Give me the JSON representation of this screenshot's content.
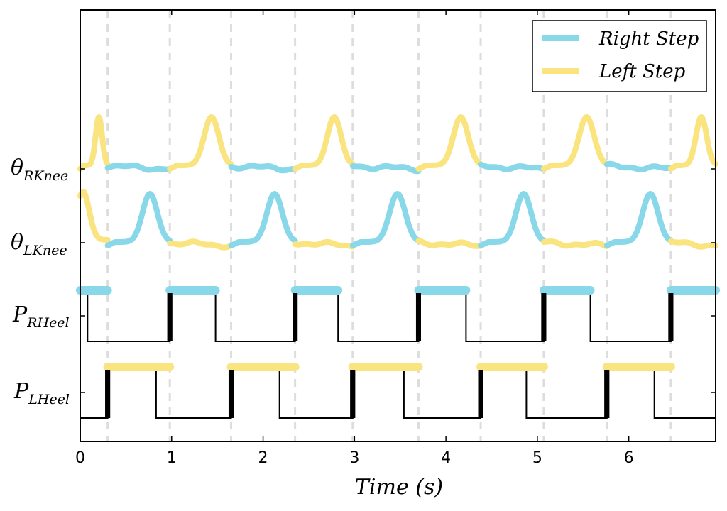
{
  "chart_data": {
    "type": "line",
    "xlabel": "Time (s)",
    "xlim": [
      0,
      6.95
    ],
    "xticks": [
      "0",
      "1",
      "2",
      "3",
      "4",
      "5",
      "6"
    ],
    "ylabels": [
      {
        "main": "θ",
        "sub": "RKnee"
      },
      {
        "main": "θ",
        "sub": "LKnee"
      },
      {
        "main": "P",
        "sub": "RHeel"
      },
      {
        "main": "P",
        "sub": "LHeel"
      }
    ],
    "step_boundaries": [
      0.3,
      0.98,
      1.65,
      2.35,
      2.98,
      3.7,
      4.38,
      5.07,
      5.76,
      6.46
    ],
    "legend": [
      {
        "label": "Right Step",
        "color": "#88d8ea"
      },
      {
        "label": "Left Step",
        "color": "#fae47f"
      }
    ],
    "right_step_color": "#88d8ea",
    "left_step_color": "#fae47f",
    "heel_right_rise": [
      0.98,
      2.35,
      3.7,
      5.07,
      6.46
    ],
    "heel_right_fall": [
      0.08,
      1.48,
      2.82,
      4.22,
      5.58
    ],
    "heel_left_rise": [
      0.3,
      1.65,
      2.98,
      4.38,
      5.76
    ],
    "heel_left_fall": [
      0.83,
      2.18,
      3.54,
      4.88,
      6.28
    ]
  }
}
